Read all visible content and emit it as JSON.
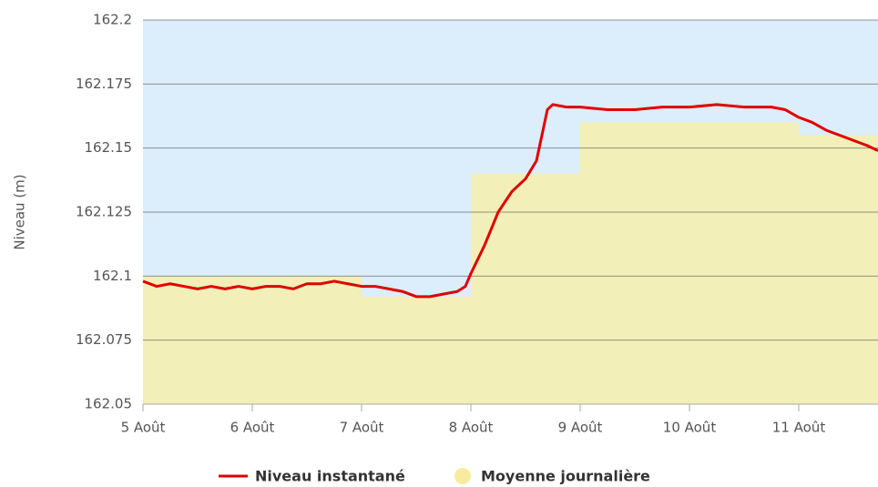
{
  "chart_data": {
    "type": "line",
    "y_label": "Niveau (m)",
    "xlim": [
      5,
      11.725
    ],
    "xticks": [
      {
        "value": 5,
        "label": "5 Août"
      },
      {
        "value": 6,
        "label": "6 Août"
      },
      {
        "value": 7,
        "label": "7 Août"
      },
      {
        "value": 8,
        "label": "8 Août"
      },
      {
        "value": 9,
        "label": "9 Août"
      },
      {
        "value": 10,
        "label": "10 Août"
      },
      {
        "value": 11,
        "label": "11 Août"
      }
    ],
    "ylim": [
      162.05,
      162.2
    ],
    "yticks": [
      162.05,
      162.075,
      162.1,
      162.125,
      162.15,
      162.175,
      162.2
    ],
    "grid": true,
    "background": "#dcedfb",
    "series": [
      {
        "name": "Moyenne journalière",
        "type": "step-area",
        "color": "#f2efb8",
        "legend_color": "#f7eba0",
        "x": [
          5,
          6,
          7,
          8,
          9,
          10,
          11
        ],
        "values": [
          162.1,
          162.1,
          162.092,
          162.14,
          162.16,
          162.16,
          162.155
        ]
      },
      {
        "name": "Niveau instantané",
        "type": "line",
        "color": "#e00000",
        "x": [
          5.0,
          5.125,
          5.25,
          5.375,
          5.5,
          5.625,
          5.75,
          5.875,
          6.0,
          6.125,
          6.25,
          6.375,
          6.5,
          6.625,
          6.75,
          6.875,
          7.0,
          7.125,
          7.25,
          7.375,
          7.5,
          7.625,
          7.75,
          7.875,
          7.95,
          8.0,
          8.125,
          8.25,
          8.375,
          8.5,
          8.6,
          8.65,
          8.7,
          8.75,
          8.875,
          9.0,
          9.25,
          9.5,
          9.75,
          10.0,
          10.25,
          10.5,
          10.75,
          10.875,
          11.0,
          11.125,
          11.25,
          11.375,
          11.5,
          11.625,
          11.725
        ],
        "values": [
          162.098,
          162.096,
          162.097,
          162.096,
          162.095,
          162.096,
          162.095,
          162.096,
          162.095,
          162.096,
          162.096,
          162.095,
          162.097,
          162.097,
          162.098,
          162.097,
          162.096,
          162.096,
          162.095,
          162.094,
          162.092,
          162.092,
          162.093,
          162.094,
          162.096,
          162.101,
          162.112,
          162.125,
          162.133,
          162.138,
          162.145,
          162.155,
          162.165,
          162.167,
          162.166,
          162.166,
          162.165,
          162.165,
          162.166,
          162.166,
          162.167,
          162.166,
          162.166,
          162.165,
          162.162,
          162.16,
          162.157,
          162.155,
          162.153,
          162.151,
          162.149
        ]
      }
    ]
  }
}
